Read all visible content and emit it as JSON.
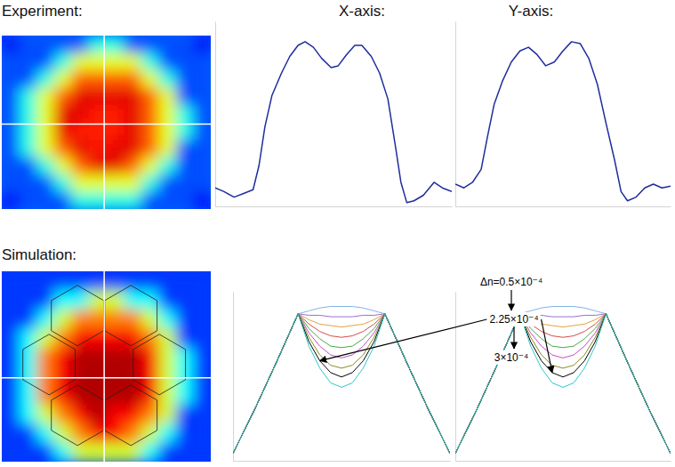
{
  "chart_data": [
    {
      "type": "heatmap",
      "title": "Experiment:",
      "zlim": [
        0,
        1
      ],
      "tick_labels": false,
      "cells": [
        [
          0.12,
          0.2,
          0.2,
          0.2,
          0.2,
          0.4,
          0.4,
          0.2,
          0.2,
          0.2,
          0.2,
          0.12
        ],
        [
          0.2,
          0.2,
          0.2,
          0.4,
          0.6,
          0.6,
          0.6,
          0.6,
          0.4,
          0.2,
          0.2,
          0.2
        ],
        [
          0.2,
          0.2,
          0.4,
          0.6,
          0.78,
          0.78,
          0.78,
          0.78,
          0.6,
          0.4,
          0.2,
          0.2
        ],
        [
          0.2,
          0.4,
          0.6,
          0.78,
          0.9,
          0.9,
          0.9,
          0.9,
          0.78,
          0.6,
          0.2,
          0.2
        ],
        [
          0.2,
          0.4,
          0.6,
          0.9,
          0.9,
          0.85,
          0.85,
          0.9,
          0.78,
          0.6,
          0.4,
          0.2
        ],
        [
          0.2,
          0.4,
          0.6,
          0.9,
          0.85,
          0.85,
          0.85,
          0.9,
          0.78,
          0.6,
          0.4,
          0.2
        ],
        [
          0.2,
          0.4,
          0.6,
          0.78,
          0.9,
          0.85,
          0.9,
          0.9,
          0.78,
          0.6,
          0.2,
          0.2
        ],
        [
          0.2,
          0.2,
          0.4,
          0.6,
          0.78,
          0.9,
          0.9,
          0.78,
          0.6,
          0.4,
          0.2,
          0.2
        ],
        [
          0.2,
          0.2,
          0.2,
          0.4,
          0.6,
          0.6,
          0.6,
          0.6,
          0.4,
          0.2,
          0.2,
          0.2
        ],
        [
          0.12,
          0.2,
          0.2,
          0.2,
          0.4,
          0.4,
          0.4,
          0.4,
          0.2,
          0.2,
          0.2,
          0.12
        ]
      ]
    },
    {
      "type": "line",
      "title": "X-axis:",
      "xlim": [
        0,
        100
      ],
      "ylim": [
        0,
        1
      ],
      "tick_labels": false,
      "x": [
        0,
        3.7,
        8,
        12,
        16,
        18.5,
        21,
        24,
        28,
        31.5,
        35,
        38,
        41.5,
        45,
        49,
        52,
        55.5,
        59,
        62,
        66,
        69.5,
        73,
        76,
        78.5,
        81,
        84,
        88,
        92.5,
        96,
        100
      ],
      "series": [
        {
          "color": "#1f2d9c",
          "values": [
            0.1,
            0.08,
            0.05,
            0.07,
            0.09,
            0.22,
            0.43,
            0.6,
            0.72,
            0.81,
            0.87,
            0.89,
            0.86,
            0.8,
            0.75,
            0.76,
            0.82,
            0.87,
            0.87,
            0.81,
            0.72,
            0.58,
            0.34,
            0.13,
            0.02,
            0.03,
            0.06,
            0.13,
            0.1,
            0.08
          ]
        }
      ]
    },
    {
      "type": "line",
      "title": "Y-axis:",
      "xlim": [
        0,
        100
      ],
      "ylim": [
        0,
        1
      ],
      "tick_labels": false,
      "x": [
        0,
        4,
        8,
        12,
        15,
        18,
        22,
        26,
        30,
        34,
        38,
        42,
        46,
        50,
        54,
        58,
        62,
        66,
        70,
        74,
        77,
        80,
        84,
        88,
        92,
        96,
        100
      ],
      "series": [
        {
          "color": "#1f2d9c",
          "values": [
            0.12,
            0.1,
            0.13,
            0.2,
            0.38,
            0.55,
            0.68,
            0.78,
            0.84,
            0.86,
            0.82,
            0.76,
            0.78,
            0.84,
            0.89,
            0.88,
            0.8,
            0.66,
            0.45,
            0.25,
            0.08,
            0.03,
            0.05,
            0.1,
            0.12,
            0.1,
            0.11
          ]
        }
      ]
    },
    {
      "type": "heatmap",
      "title": "Simulation:",
      "zlim": [
        0,
        1
      ],
      "tick_labels": false,
      "cells": [
        [
          0.18,
          0.18,
          0.18,
          0.18,
          0.18,
          0.18,
          0.18,
          0.18,
          0.18,
          0.18,
          0.18,
          0.18
        ],
        [
          0.18,
          0.18,
          0.18,
          0.38,
          0.38,
          0.58,
          0.58,
          0.38,
          0.38,
          0.18,
          0.18,
          0.18
        ],
        [
          0.18,
          0.18,
          0.38,
          0.58,
          0.75,
          0.75,
          0.75,
          0.75,
          0.58,
          0.38,
          0.18,
          0.18
        ],
        [
          0.18,
          0.38,
          0.58,
          0.75,
          0.88,
          0.88,
          0.88,
          0.88,
          0.75,
          0.58,
          0.18,
          0.18
        ],
        [
          0.18,
          0.38,
          0.75,
          0.88,
          0.95,
          0.95,
          0.95,
          0.95,
          0.88,
          0.58,
          0.38,
          0.18
        ],
        [
          0.18,
          0.38,
          0.75,
          0.88,
          0.95,
          0.95,
          0.95,
          0.95,
          0.88,
          0.58,
          0.38,
          0.18
        ],
        [
          0.18,
          0.38,
          0.75,
          0.88,
          0.95,
          0.95,
          0.95,
          0.95,
          0.88,
          0.58,
          0.38,
          0.18
        ],
        [
          0.18,
          0.38,
          0.58,
          0.75,
          0.88,
          0.95,
          0.88,
          0.88,
          0.75,
          0.58,
          0.18,
          0.18
        ],
        [
          0.18,
          0.18,
          0.38,
          0.58,
          0.75,
          0.88,
          0.88,
          0.75,
          0.58,
          0.38,
          0.18,
          0.18
        ],
        [
          0.18,
          0.18,
          0.18,
          0.38,
          0.58,
          0.58,
          0.58,
          0.58,
          0.38,
          0.18,
          0.18,
          0.18
        ]
      ]
    },
    {
      "type": "line",
      "xlim": [
        0,
        100
      ],
      "ylim": [
        0,
        1.15
      ],
      "tick_labels": false,
      "annotations": [
        "Δn=0.5×10⁻⁴",
        "2.25×10⁻⁴",
        "3×10⁻⁴"
      ],
      "x": [
        0,
        10,
        20,
        30,
        35,
        40,
        45,
        50,
        55,
        60,
        65,
        70,
        80,
        90,
        100
      ],
      "series": [
        {
          "color": "#7fb3e6",
          "values": [
            0.05,
            0.35,
            0.67,
            1,
            1.02,
            1.04,
            1.05,
            1.05,
            1.05,
            1.04,
            1.02,
            1,
            0.67,
            0.35,
            0.05
          ]
        },
        {
          "color": "#9a6fd0",
          "values": [
            0.05,
            0.35,
            0.67,
            1,
            0.99,
            0.99,
            0.98,
            0.98,
            0.98,
            0.99,
            0.99,
            1,
            0.67,
            0.35,
            0.05
          ]
        },
        {
          "color": "#e3a33f",
          "values": [
            0.05,
            0.35,
            0.67,
            1,
            0.96,
            0.93,
            0.92,
            0.91,
            0.92,
            0.93,
            0.96,
            1,
            0.67,
            0.35,
            0.05
          ]
        },
        {
          "color": "#d94a4a",
          "values": [
            0.05,
            0.35,
            0.67,
            1,
            0.93,
            0.88,
            0.85,
            0.84,
            0.85,
            0.88,
            0.93,
            1,
            0.67,
            0.35,
            0.05
          ]
        },
        {
          "color": "#4aa84a",
          "values": [
            0.05,
            0.35,
            0.67,
            1,
            0.9,
            0.83,
            0.78,
            0.77,
            0.78,
            0.83,
            0.9,
            1,
            0.67,
            0.35,
            0.05
          ]
        },
        {
          "color": "#c84bc8",
          "values": [
            0.05,
            0.35,
            0.67,
            1,
            0.87,
            0.78,
            0.72,
            0.7,
            0.72,
            0.78,
            0.87,
            1,
            0.67,
            0.35,
            0.05
          ]
        },
        {
          "color": "#8c8c1e",
          "values": [
            0.05,
            0.35,
            0.67,
            1,
            0.84,
            0.72,
            0.65,
            0.63,
            0.65,
            0.72,
            0.84,
            1,
            0.67,
            0.35,
            0.05
          ]
        },
        {
          "color": "#000000",
          "values": [
            0.05,
            0.35,
            0.67,
            1,
            0.81,
            0.68,
            0.6,
            0.57,
            0.6,
            0.68,
            0.81,
            1,
            0.67,
            0.35,
            0.05
          ]
        },
        {
          "color": "#2ec9c9",
          "values": [
            0.05,
            0.35,
            0.67,
            1,
            0.78,
            0.63,
            0.53,
            0.5,
            0.53,
            0.63,
            0.78,
            1,
            0.67,
            0.35,
            0.05
          ]
        }
      ]
    },
    {
      "type": "line",
      "xlim": [
        0,
        100
      ],
      "ylim": [
        0,
        1.15
      ],
      "tick_labels": false,
      "x": [
        0,
        10,
        20,
        30,
        35,
        40,
        45,
        50,
        55,
        60,
        65,
        70,
        80,
        90,
        100
      ],
      "series": [
        {
          "color": "#7fb3e6",
          "values": [
            0.05,
            0.35,
            0.67,
            1,
            1.02,
            1.04,
            1.05,
            1.05,
            1.05,
            1.04,
            1.02,
            1,
            0.67,
            0.35,
            0.05
          ]
        },
        {
          "color": "#9a6fd0",
          "values": [
            0.05,
            0.35,
            0.67,
            1,
            0.99,
            0.99,
            0.98,
            0.98,
            0.98,
            0.99,
            0.99,
            1,
            0.67,
            0.35,
            0.05
          ]
        },
        {
          "color": "#e3a33f",
          "values": [
            0.05,
            0.35,
            0.67,
            1,
            0.96,
            0.93,
            0.92,
            0.91,
            0.92,
            0.93,
            0.96,
            1,
            0.67,
            0.35,
            0.05
          ]
        },
        {
          "color": "#d94a4a",
          "values": [
            0.05,
            0.35,
            0.67,
            1,
            0.93,
            0.88,
            0.85,
            0.84,
            0.85,
            0.88,
            0.93,
            1,
            0.67,
            0.35,
            0.05
          ]
        },
        {
          "color": "#4aa84a",
          "values": [
            0.05,
            0.35,
            0.67,
            1,
            0.9,
            0.83,
            0.78,
            0.77,
            0.78,
            0.83,
            0.9,
            1,
            0.67,
            0.35,
            0.05
          ]
        },
        {
          "color": "#c84bc8",
          "values": [
            0.05,
            0.35,
            0.67,
            1,
            0.87,
            0.78,
            0.72,
            0.7,
            0.72,
            0.78,
            0.87,
            1,
            0.67,
            0.35,
            0.05
          ]
        },
        {
          "color": "#8c8c1e",
          "values": [
            0.05,
            0.35,
            0.67,
            1,
            0.84,
            0.72,
            0.65,
            0.63,
            0.65,
            0.72,
            0.84,
            1,
            0.67,
            0.35,
            0.05
          ]
        },
        {
          "color": "#000000",
          "values": [
            0.05,
            0.35,
            0.67,
            1,
            0.81,
            0.68,
            0.6,
            0.57,
            0.6,
            0.68,
            0.81,
            1,
            0.67,
            0.35,
            0.05
          ]
        },
        {
          "color": "#2ec9c9",
          "values": [
            0.05,
            0.35,
            0.67,
            1,
            0.78,
            0.63,
            0.53,
            0.5,
            0.53,
            0.63,
            0.78,
            1,
            0.67,
            0.35,
            0.05
          ]
        }
      ]
    }
  ]
}
